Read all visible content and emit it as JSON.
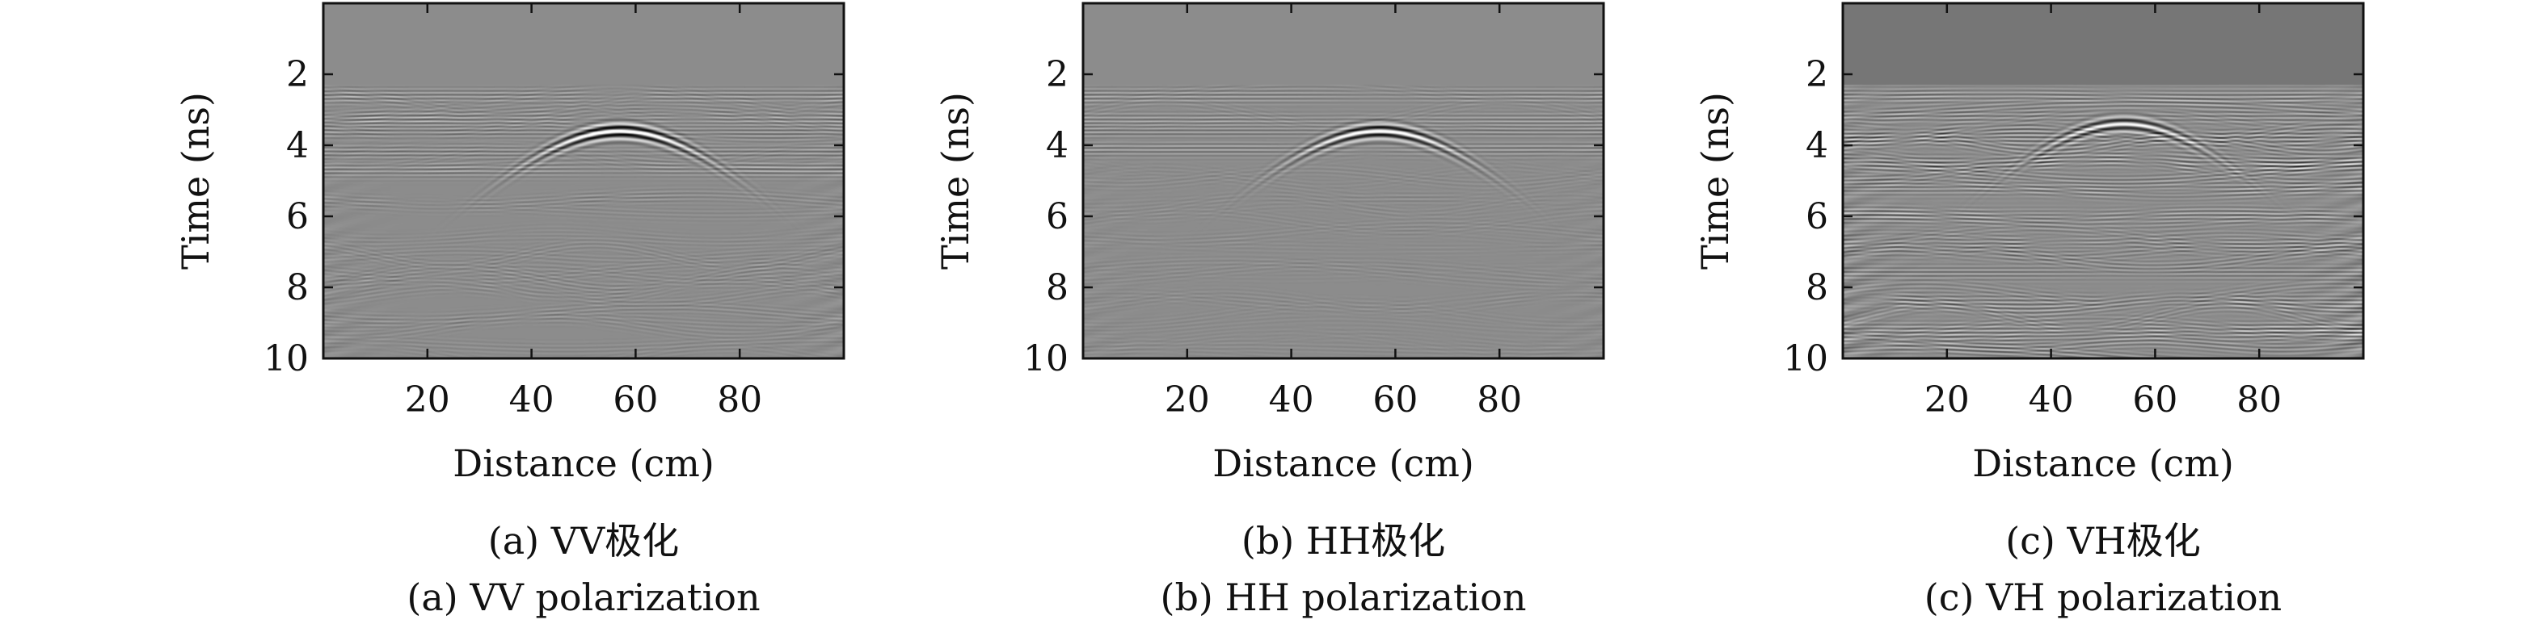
{
  "chart_data": [
    {
      "type": "heatmap",
      "caption_cn": "(a) VV极化",
      "caption_en": "(a) VV polarization",
      "xlabel": "Distance (cm)",
      "ylabel": "Time (ns)",
      "xlim": [
        0,
        100
      ],
      "ylim": [
        10,
        0
      ],
      "y_inverted": true,
      "xticks": [
        20,
        40,
        60,
        80
      ],
      "yticks": [
        2,
        4,
        6,
        8,
        10
      ],
      "background_gray": "#8c8c8c",
      "top_band_gray": "#8c8c8c",
      "reflection_apex": {
        "x": 57,
        "y": 3.6
      },
      "flat_events_y": [
        2.6,
        3.3,
        3.6,
        4.2,
        4.7
      ],
      "clutter_strength": 0.25,
      "event_strength": 0.8
    },
    {
      "type": "heatmap",
      "caption_cn": "(b) HH极化",
      "caption_en": "(b) HH polarization",
      "xlabel": "Distance (cm)",
      "ylabel": "Time (ns)",
      "xlim": [
        0,
        100
      ],
      "ylim": [
        10,
        0
      ],
      "y_inverted": true,
      "xticks": [
        20,
        40,
        60,
        80
      ],
      "yticks": [
        2,
        4,
        6,
        8,
        10
      ],
      "background_gray": "#8c8c8c",
      "top_band_gray": "#8c8c8c",
      "reflection_apex": {
        "x": 57,
        "y": 3.6
      },
      "flat_events_y": [
        2.6,
        3.3,
        3.6,
        4.1
      ],
      "clutter_strength": 0.15,
      "event_strength": 0.7
    },
    {
      "type": "heatmap",
      "caption_cn": "(c) VH极化",
      "caption_en": "(c) VH polarization",
      "xlabel": "Distance (cm)",
      "ylabel": "Time (ns)",
      "xlim": [
        0,
        100
      ],
      "ylim": [
        10,
        0
      ],
      "y_inverted": true,
      "xticks": [
        20,
        40,
        60,
        80
      ],
      "yticks": [
        2,
        4,
        6,
        8,
        10
      ],
      "background_gray": "#8c8c8c",
      "top_band_gray": "#767676",
      "top_band_end_y": 2.3,
      "reflection_apex": {
        "x": 54,
        "y": 3.4
      },
      "flat_events_y": [
        2.6,
        3.2,
        3.8,
        4.5,
        5.2,
        6.0,
        6.8,
        7.6,
        8.4,
        9.2
      ],
      "clutter_strength": 0.6,
      "event_strength": 0.55
    }
  ]
}
